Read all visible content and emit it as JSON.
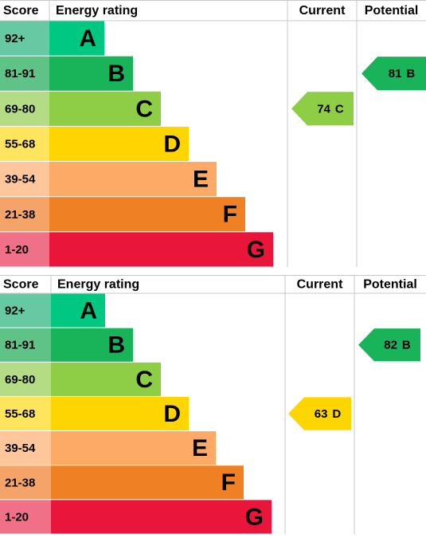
{
  "charts": [
    {
      "headers": [
        "Score",
        "Energy rating",
        "Current",
        "Potential"
      ],
      "bands": [
        {
          "score": "92+",
          "letter": "A"
        },
        {
          "score": "81-91",
          "letter": "B"
        },
        {
          "score": "69-80",
          "letter": "C"
        },
        {
          "score": "55-68",
          "letter": "D"
        },
        {
          "score": "39-54",
          "letter": "E"
        },
        {
          "score": "21-38",
          "letter": "F"
        },
        {
          "score": "1-20",
          "letter": "G"
        }
      ],
      "current": {
        "value": 74,
        "letter": "C"
      },
      "potential": {
        "value": 81,
        "letter": "B"
      }
    },
    {
      "headers": [
        "Score",
        "Energy rating",
        "Current",
        "Potential"
      ],
      "bands": [
        {
          "score": "92+",
          "letter": "A"
        },
        {
          "score": "81-91",
          "letter": "B"
        },
        {
          "score": "69-80",
          "letter": "C"
        },
        {
          "score": "55-68",
          "letter": "D"
        },
        {
          "score": "39-54",
          "letter": "E"
        },
        {
          "score": "21-38",
          "letter": "F"
        },
        {
          "score": "1-20",
          "letter": "G"
        }
      ],
      "current": {
        "value": 63,
        "letter": "D"
      },
      "potential": {
        "value": 82,
        "letter": "B"
      }
    }
  ]
}
